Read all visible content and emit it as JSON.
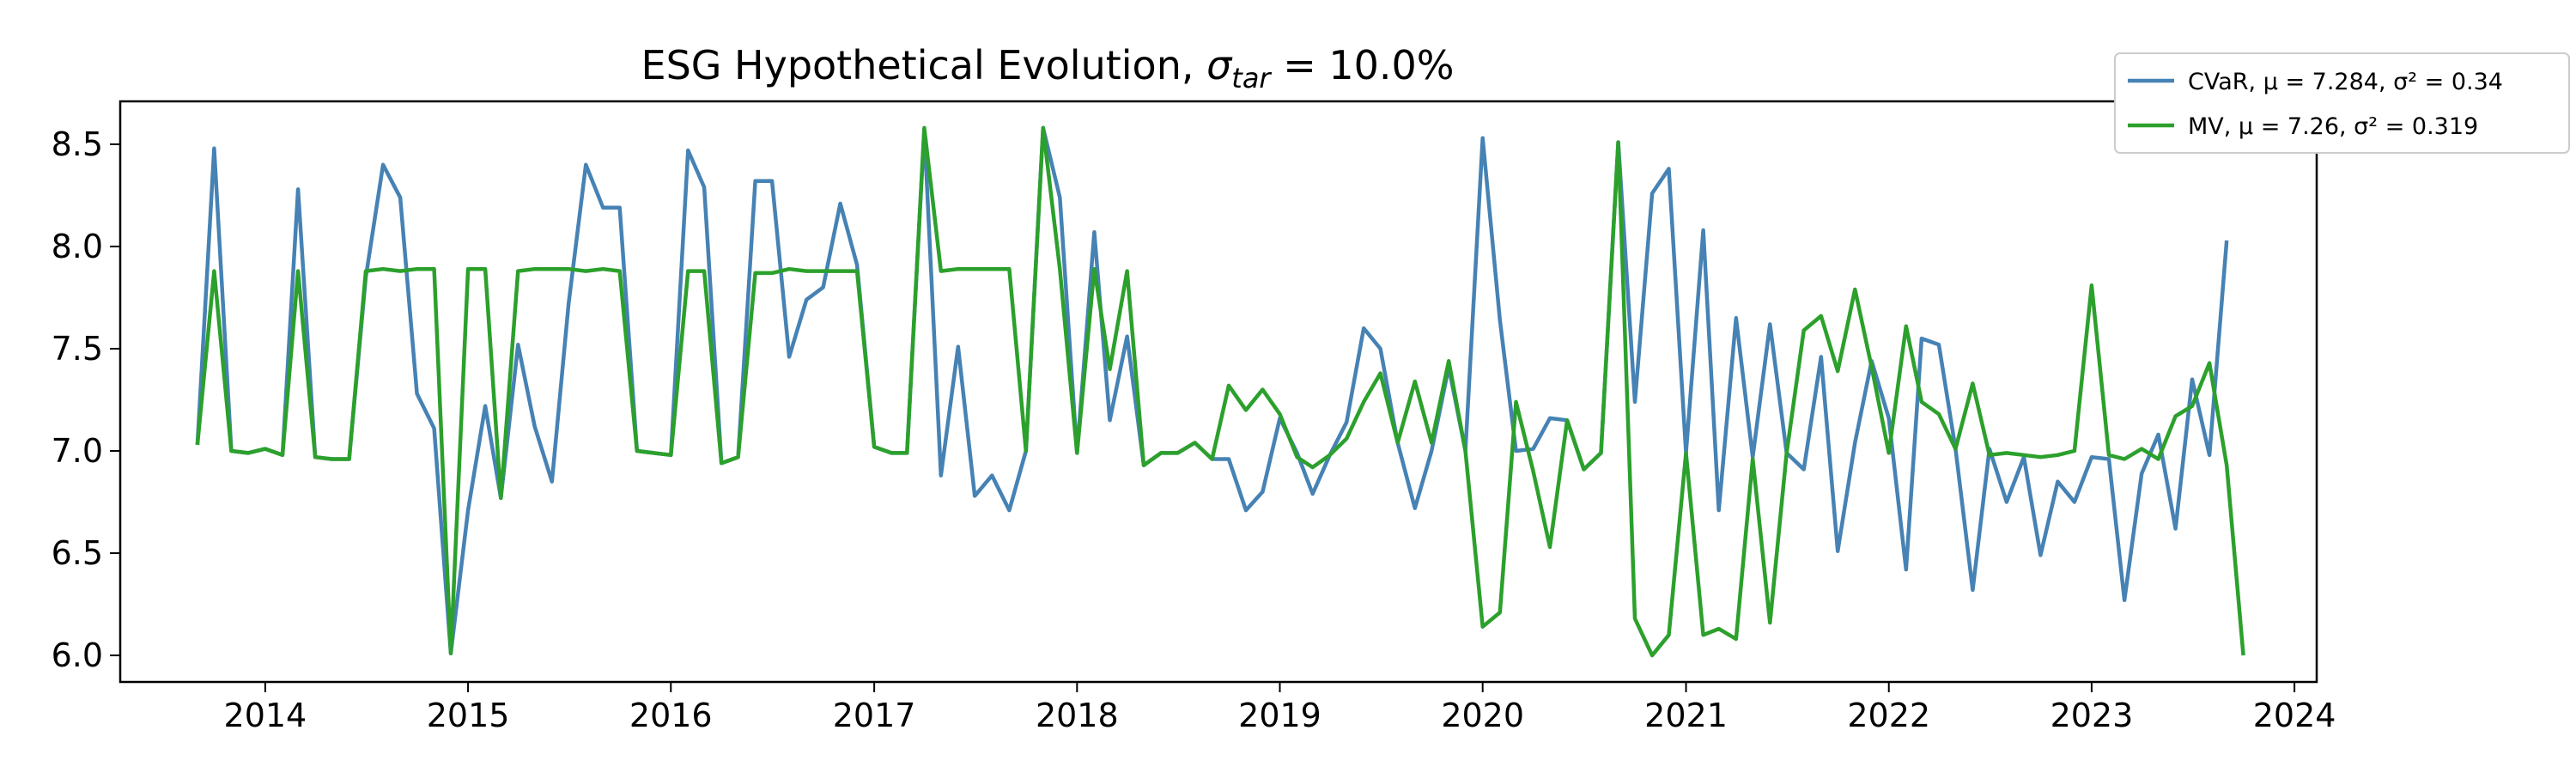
{
  "chart_data": {
    "type": "line",
    "title_prefix": "ESG Hypothetical Evolution, ",
    "title_symbol": "σ",
    "title_subscript": "tar",
    "title_suffix": " = 10.0%",
    "xlabel": "",
    "ylabel": "",
    "xlim": [
      "2013-04-15",
      "2024-02-10"
    ],
    "ylim": [
      5.87,
      8.71
    ],
    "x_ticks": [
      "2014",
      "2015",
      "2016",
      "2017",
      "2018",
      "2019",
      "2020",
      "2021",
      "2022",
      "2023",
      "2024"
    ],
    "y_ticks": [
      "6.0",
      "6.5",
      "7.0",
      "7.5",
      "8.0",
      "8.5"
    ],
    "grid": false,
    "legend_position": "top-right, outside plot",
    "start_date": "2013-09",
    "frequency": "monthly",
    "series": [
      {
        "name": "CVaR",
        "legend_label": "CVaR, μ = 7.284, σ² = 0.34",
        "color": "#4682b4",
        "values": [
          7.03,
          8.48,
          7.0,
          6.99,
          7.01,
          6.98,
          8.28,
          6.97,
          6.96,
          6.96,
          7.85,
          8.4,
          8.24,
          7.28,
          7.11,
          6.01,
          6.71,
          7.22,
          6.77,
          7.52,
          7.12,
          6.85,
          7.72,
          8.4,
          8.19,
          8.19,
          7.0,
          6.99,
          6.98,
          8.47,
          8.29,
          6.94,
          6.97,
          8.32,
          8.32,
          7.46,
          7.74,
          7.8,
          8.21,
          7.91,
          7.02,
          6.99,
          6.99,
          8.57,
          6.88,
          7.51,
          6.78,
          6.88,
          6.71,
          7.0,
          8.58,
          8.24,
          6.99,
          8.07,
          7.15,
          7.56,
          6.93,
          6.99,
          6.99,
          7.04,
          6.96,
          6.96,
          6.71,
          6.8,
          7.16,
          6.99,
          6.79,
          6.98,
          7.14,
          7.6,
          7.5,
          7.04,
          6.72,
          7.0,
          7.41,
          7.0,
          8.53,
          7.64,
          7.0,
          7.01,
          7.16,
          7.15,
          6.91,
          6.99,
          8.51,
          7.24,
          8.26,
          8.38,
          6.99,
          8.08,
          6.71,
          7.65,
          6.97,
          7.62,
          6.99,
          6.91,
          7.46,
          6.51,
          7.04,
          7.44,
          7.16,
          6.42,
          7.55,
          7.52,
          7.01,
          6.32,
          7.01,
          6.75,
          6.97,
          6.49,
          6.85,
          6.75,
          6.97,
          6.96,
          6.27,
          6.89,
          7.08,
          6.62,
          7.35,
          6.98,
          8.03
        ]
      },
      {
        "name": "MV",
        "legend_label": "MV, μ = 7.26, σ² = 0.319",
        "color": "#2ca02c",
        "values": [
          7.03,
          7.88,
          7.0,
          6.99,
          7.01,
          6.98,
          7.88,
          6.97,
          6.96,
          6.96,
          7.88,
          7.89,
          7.88,
          7.89,
          7.89,
          6.01,
          7.89,
          7.89,
          6.77,
          7.88,
          7.89,
          7.89,
          7.89,
          7.88,
          7.89,
          7.88,
          7.0,
          6.99,
          6.98,
          7.88,
          7.88,
          6.94,
          6.97,
          7.87,
          7.87,
          7.89,
          7.88,
          7.88,
          7.88,
          7.88,
          7.02,
          6.99,
          6.99,
          8.58,
          7.88,
          7.89,
          7.89,
          7.89,
          7.89,
          7.0,
          8.58,
          7.89,
          6.99,
          7.89,
          7.4,
          7.88,
          6.93,
          6.99,
          6.99,
          7.04,
          6.96,
          7.32,
          7.2,
          7.3,
          7.18,
          6.97,
          6.92,
          6.98,
          7.06,
          7.24,
          7.38,
          7.04,
          7.34,
          7.04,
          7.44,
          7.0,
          6.14,
          6.21,
          7.24,
          6.9,
          6.53,
          7.15,
          6.91,
          6.99,
          8.51,
          6.18,
          6.0,
          6.1,
          6.99,
          6.1,
          6.13,
          6.08,
          6.96,
          6.16,
          6.99,
          7.59,
          7.66,
          7.39,
          7.79,
          7.41,
          6.99,
          7.61,
          7.24,
          7.18,
          7.01,
          7.33,
          6.98,
          6.99,
          6.98,
          6.97,
          6.98,
          7.0,
          7.81,
          6.98,
          6.96,
          7.01,
          6.96,
          7.17,
          7.22,
          7.43,
          6.93,
          6.0
        ]
      }
    ]
  }
}
